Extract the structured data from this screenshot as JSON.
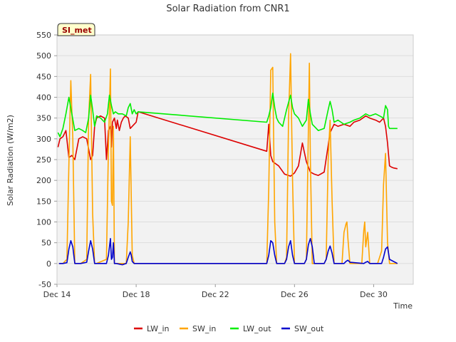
{
  "chart_data": {
    "type": "line",
    "title": "Solar Radiation from CNR1",
    "xlabel": "Time",
    "ylabel": "Solar Radiation (W/m2)",
    "badge": "SI_met",
    "xlim": [
      0,
      18
    ],
    "ylim": [
      -50,
      550
    ],
    "x_unit": "days since Dec 14",
    "xticks": [
      {
        "value": 0,
        "label": "Dec 14"
      },
      {
        "value": 4,
        "label": "Dec 18"
      },
      {
        "value": 8,
        "label": "Dec 22"
      },
      {
        "value": 12,
        "label": "Dec 26"
      },
      {
        "value": 16,
        "label": "Dec 30"
      }
    ],
    "yticks": [
      -50,
      0,
      50,
      100,
      150,
      200,
      250,
      300,
      350,
      400,
      450,
      500,
      550
    ],
    "legend": [
      "LW_in",
      "SW_in",
      "LW_out",
      "SW_out"
    ],
    "colors": {
      "LW_in": "#dd0000",
      "SW_in": "#ffa500",
      "LW_out": "#00ee00",
      "SW_out": "#0000cc"
    },
    "series": [
      {
        "name": "LW_in",
        "x": [
          0.05,
          0.15,
          0.3,
          0.45,
          0.6,
          0.75,
          0.9,
          1.1,
          1.3,
          1.5,
          1.7,
          1.8,
          1.9,
          2.0,
          2.2,
          2.4,
          2.5,
          2.6,
          2.7,
          2.75,
          2.8,
          2.9,
          3.0,
          3.05,
          3.15,
          3.25,
          3.35,
          3.45,
          3.6,
          3.7,
          3.8,
          3.9,
          4.0,
          4.1,
          10.6,
          10.7,
          10.8,
          10.9,
          11.2,
          11.5,
          11.8,
          12.0,
          12.2,
          12.4,
          12.6,
          12.8,
          13.0,
          13.2,
          13.5,
          13.8,
          14.0,
          14.2,
          14.5,
          14.8,
          15.0,
          15.3,
          15.6,
          15.8,
          16.1,
          16.3,
          16.5,
          16.6,
          16.7,
          16.8,
          16.9,
          17.0,
          17.2
        ],
        "values": [
          280,
          300,
          305,
          320,
          255,
          260,
          250,
          300,
          305,
          300,
          250,
          260,
          330,
          350,
          355,
          350,
          250,
          320,
          330,
          280,
          340,
          350,
          325,
          345,
          320,
          340,
          350,
          355,
          350,
          325,
          330,
          335,
          340,
          365,
          270,
          335,
          260,
          245,
          235,
          215,
          210,
          218,
          235,
          290,
          245,
          220,
          215,
          212,
          220,
          315,
          335,
          330,
          335,
          330,
          340,
          345,
          355,
          350,
          345,
          340,
          350,
          330,
          290,
          235,
          232,
          230,
          228
        ]
      },
      {
        "name": "SW_in",
        "x": [
          0.1,
          0.3,
          0.5,
          0.6,
          0.7,
          0.8,
          0.9,
          1.2,
          1.5,
          1.6,
          1.7,
          1.8,
          1.9,
          2.0,
          2.5,
          2.6,
          2.7,
          2.75,
          2.8,
          2.85,
          2.9,
          3.0,
          3.5,
          3.6,
          3.7,
          3.8,
          3.9,
          4.0,
          4.5,
          10.6,
          10.7,
          10.8,
          10.9,
          11.0,
          11.1,
          11.5,
          11.6,
          11.7,
          11.8,
          11.9,
          12.0,
          12.5,
          12.6,
          12.7,
          12.75,
          12.8,
          12.9,
          13.5,
          13.6,
          13.7,
          13.8,
          13.9,
          14.0,
          14.4,
          14.5,
          14.6,
          14.65,
          14.7,
          14.8,
          15.4,
          15.5,
          15.55,
          15.6,
          15.7,
          15.8,
          16.2,
          16.4,
          16.5,
          16.6,
          16.7,
          16.8,
          17.2
        ],
        "values": [
          0,
          0,
          10,
          240,
          440,
          300,
          0,
          0,
          10,
          350,
          455,
          120,
          0,
          0,
          10,
          280,
          468,
          150,
          140,
          330,
          0,
          0,
          0,
          100,
          305,
          20,
          0,
          0,
          0,
          0,
          180,
          465,
          472,
          100,
          0,
          0,
          15,
          350,
          505,
          200,
          0,
          0,
          10,
          320,
          482,
          250,
          0,
          0,
          10,
          250,
          345,
          150,
          0,
          0,
          75,
          95,
          100,
          60,
          0,
          0,
          80,
          100,
          40,
          75,
          0,
          0,
          30,
          190,
          265,
          50,
          0,
          0
        ]
      },
      {
        "name": "LW_out",
        "x": [
          0.05,
          0.15,
          0.3,
          0.45,
          0.6,
          0.75,
          0.9,
          1.1,
          1.3,
          1.45,
          1.6,
          1.7,
          1.8,
          1.9,
          2.0,
          2.2,
          2.4,
          2.55,
          2.65,
          2.75,
          2.85,
          2.95,
          3.1,
          3.3,
          3.5,
          3.6,
          3.7,
          3.8,
          3.9,
          4.0,
          4.1,
          10.6,
          10.7,
          10.8,
          10.9,
          11.0,
          11.1,
          11.2,
          11.4,
          11.6,
          11.8,
          11.9,
          12.0,
          12.2,
          12.4,
          12.6,
          12.7,
          12.8,
          12.9,
          13.0,
          13.2,
          13.5,
          13.7,
          13.8,
          13.9,
          14.0,
          14.2,
          14.5,
          14.8,
          15.0,
          15.3,
          15.6,
          15.8,
          16.1,
          16.3,
          16.5,
          16.6,
          16.7,
          16.75,
          16.8,
          17.0,
          17.2
        ],
        "values": [
          315,
          305,
          325,
          360,
          400,
          360,
          320,
          325,
          320,
          315,
          350,
          405,
          370,
          330,
          355,
          350,
          340,
          360,
          405,
          380,
          360,
          365,
          360,
          360,
          355,
          375,
          385,
          360,
          370,
          360,
          365,
          340,
          355,
          375,
          410,
          375,
          350,
          340,
          330,
          370,
          405,
          375,
          360,
          350,
          330,
          345,
          395,
          360,
          335,
          330,
          320,
          325,
          370,
          390,
          370,
          340,
          345,
          335,
          340,
          345,
          350,
          360,
          355,
          360,
          355,
          350,
          380,
          370,
          330,
          325,
          325,
          325
        ]
      },
      {
        "name": "SW_out",
        "x": [
          0.1,
          0.3,
          0.5,
          0.6,
          0.7,
          0.8,
          0.9,
          1.2,
          1.5,
          1.6,
          1.7,
          1.8,
          1.9,
          2.0,
          2.5,
          2.6,
          2.7,
          2.75,
          2.8,
          2.85,
          2.9,
          3.0,
          3.3,
          3.5,
          3.6,
          3.7,
          3.75,
          3.8,
          3.9,
          4.0,
          4.5,
          10.6,
          10.7,
          10.8,
          10.9,
          11.0,
          11.1,
          11.5,
          11.6,
          11.7,
          11.8,
          11.9,
          12.0,
          12.5,
          12.6,
          12.7,
          12.8,
          12.9,
          13.0,
          13.5,
          13.6,
          13.7,
          13.8,
          13.9,
          14.0,
          14.5,
          14.6,
          14.7,
          14.8,
          15.5,
          15.6,
          15.7,
          15.8,
          16.4,
          16.5,
          16.6,
          16.7,
          16.8,
          17.2
        ],
        "values": [
          0,
          0,
          2,
          35,
          55,
          40,
          0,
          0,
          3,
          30,
          55,
          35,
          0,
          0,
          0,
          20,
          60,
          10,
          15,
          50,
          0,
          0,
          -3,
          0,
          15,
          28,
          20,
          5,
          0,
          0,
          0,
          0,
          20,
          55,
          50,
          20,
          0,
          0,
          10,
          40,
          55,
          20,
          0,
          0,
          10,
          45,
          60,
          40,
          0,
          0,
          10,
          30,
          42,
          25,
          0,
          0,
          5,
          8,
          3,
          0,
          3,
          5,
          0,
          0,
          15,
          35,
          40,
          10,
          0
        ]
      }
    ]
  }
}
